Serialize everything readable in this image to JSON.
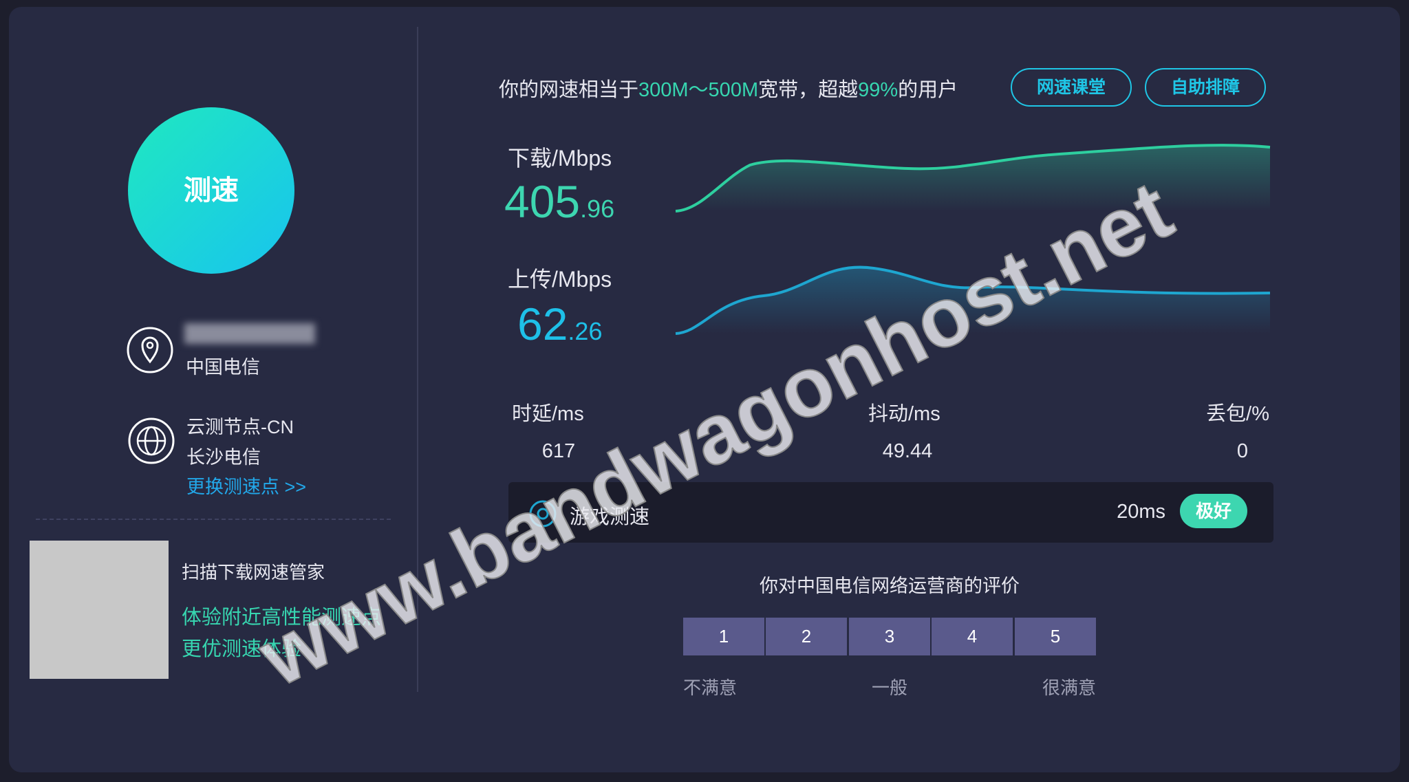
{
  "speed_button": "测速",
  "isp": {
    "name": "中国电信"
  },
  "node": {
    "name": "云测节点-CN",
    "city": "长沙电信",
    "change_link": "更换测速点 >>"
  },
  "qr": {
    "title": "扫描下载网速管家",
    "line1": "体验附近高性能测速点",
    "line2": "更优测速体验"
  },
  "summary": {
    "prefix": "你的网速相当于",
    "range": "300M～500M",
    "middle": "宽带，超越",
    "percent": "99%",
    "suffix": "的用户"
  },
  "buttons": [
    "网速课堂",
    "自助排障"
  ],
  "download": {
    "label": "下载/Mbps",
    "integer": "405",
    "decimal": ".96"
  },
  "upload": {
    "label": "上传/Mbps",
    "integer": "62",
    "decimal": ".26"
  },
  "metrics": [
    {
      "label": "时延/ms",
      "value": "617"
    },
    {
      "label": "抖动/ms",
      "value": "49.44"
    },
    {
      "label": "丢包/%",
      "value": "0"
    }
  ],
  "game": {
    "label": "游戏测速",
    "latency": "20ms",
    "rating": "极好"
  },
  "rating": {
    "title": "你对中国电信网络运营商的评价",
    "options": [
      "1",
      "2",
      "3",
      "4",
      "5"
    ],
    "low": "不满意",
    "mid": "一般",
    "high": "很满意"
  },
  "watermark": "www.bandwagonhost.net"
}
